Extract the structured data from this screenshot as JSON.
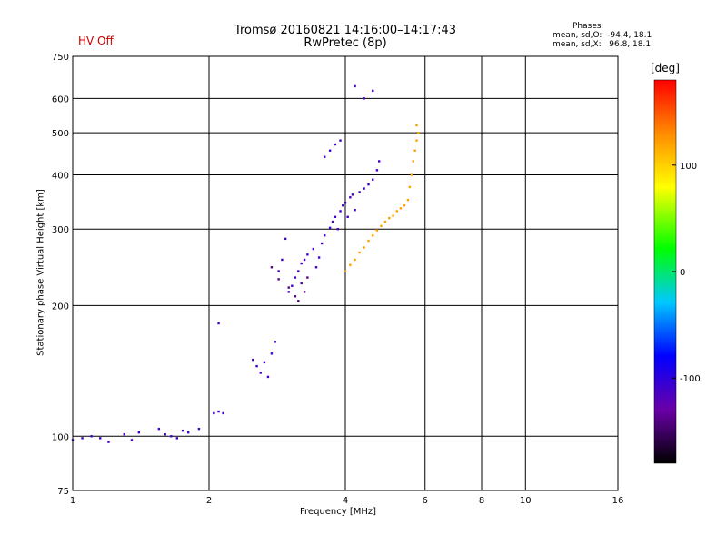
{
  "status": {
    "hv": "HV Off"
  },
  "header": {
    "title": "Tromsø 20160821 14:16:00–14:17:43",
    "subtitle": "RwPretec (8p)"
  },
  "phases": {
    "title": "Phases",
    "o": "mean, sd,O:  -94.4, 18.1",
    "x": "mean, sd,X:   96.8, 18.1"
  },
  "colorbar": {
    "label": "[deg]",
    "ticks": [
      "100",
      "0",
      "-100"
    ],
    "range": [
      -180,
      180
    ]
  },
  "chart_data": {
    "type": "scatter",
    "xlabel": "Frequency [MHz]",
    "ylabel": "Stationary phase Virtual Height [km]",
    "xscale": "log",
    "yscale": "log",
    "xlim": [
      1,
      16
    ],
    "ylim": [
      75,
      750
    ],
    "xticks": [
      1,
      2,
      4,
      6,
      8,
      10,
      16
    ],
    "xtick_labels": [
      "1",
      "2",
      "4",
      "6",
      "8",
      "10",
      "16"
    ],
    "yticks": [
      75,
      100,
      200,
      300,
      400,
      500,
      600,
      750
    ],
    "ytick_labels": [
      "75",
      "100",
      "200",
      "300",
      "400",
      "500",
      "600",
      "750"
    ],
    "grid": true,
    "series": [
      {
        "mode": "O",
        "phase_deg": -110,
        "points": [
          [
            1.0,
            98
          ],
          [
            1.05,
            99
          ],
          [
            1.1,
            100
          ],
          [
            1.15,
            99
          ],
          [
            1.2,
            97
          ],
          [
            1.3,
            101
          ],
          [
            1.35,
            98
          ],
          [
            1.4,
            102
          ],
          [
            1.55,
            104
          ],
          [
            1.6,
            101
          ],
          [
            1.65,
            100
          ],
          [
            1.7,
            99
          ],
          [
            1.75,
            103
          ],
          [
            1.8,
            102
          ],
          [
            1.9,
            104
          ],
          [
            2.05,
            113
          ],
          [
            2.1,
            114
          ],
          [
            2.15,
            113
          ],
          [
            2.1,
            182
          ],
          [
            2.5,
            150
          ],
          [
            2.55,
            145
          ],
          [
            2.6,
            140
          ],
          [
            2.65,
            148
          ],
          [
            2.7,
            137
          ],
          [
            2.75,
            155
          ],
          [
            2.8,
            165
          ],
          [
            2.85,
            240
          ],
          [
            2.9,
            255
          ],
          [
            2.95,
            285
          ],
          [
            3.0,
            215
          ],
          [
            3.05,
            222
          ],
          [
            3.1,
            232
          ],
          [
            3.15,
            240
          ],
          [
            3.2,
            250
          ],
          [
            3.25,
            255
          ],
          [
            3.3,
            262
          ],
          [
            3.4,
            270
          ],
          [
            3.45,
            245
          ],
          [
            3.5,
            258
          ],
          [
            3.55,
            278
          ],
          [
            3.6,
            290
          ],
          [
            3.7,
            302
          ],
          [
            3.75,
            312
          ],
          [
            3.8,
            320
          ],
          [
            3.85,
            300
          ],
          [
            3.9,
            330
          ],
          [
            3.95,
            340
          ],
          [
            4.0,
            345
          ],
          [
            4.05,
            320
          ],
          [
            4.1,
            355
          ],
          [
            4.15,
            360
          ],
          [
            4.2,
            332
          ],
          [
            4.3,
            365
          ],
          [
            4.4,
            372
          ],
          [
            4.5,
            380
          ],
          [
            4.6,
            390
          ],
          [
            4.7,
            410
          ],
          [
            4.75,
            430
          ],
          [
            3.6,
            440
          ],
          [
            3.7,
            455
          ],
          [
            3.8,
            470
          ],
          [
            3.9,
            480
          ],
          [
            4.2,
            640
          ],
          [
            4.4,
            600
          ],
          [
            4.6,
            625
          ]
        ]
      },
      {
        "mode": "O-low",
        "phase_deg": -140,
        "points": [
          [
            2.75,
            245
          ],
          [
            2.85,
            230
          ],
          [
            3.0,
            220
          ],
          [
            3.1,
            210
          ],
          [
            3.15,
            205
          ],
          [
            3.2,
            225
          ],
          [
            3.25,
            215
          ],
          [
            3.3,
            232
          ]
        ]
      },
      {
        "mode": "X",
        "phase_deg": 120,
        "points": [
          [
            4.0,
            240
          ],
          [
            4.1,
            248
          ],
          [
            4.2,
            255
          ],
          [
            4.3,
            265
          ],
          [
            4.4,
            272
          ],
          [
            4.5,
            282
          ],
          [
            4.6,
            290
          ],
          [
            4.7,
            298
          ],
          [
            4.8,
            305
          ],
          [
            4.9,
            312
          ],
          [
            5.0,
            318
          ],
          [
            5.1,
            322
          ],
          [
            5.2,
            330
          ],
          [
            5.3,
            335
          ],
          [
            5.4,
            340
          ],
          [
            5.5,
            350
          ],
          [
            5.55,
            375
          ],
          [
            5.6,
            400
          ],
          [
            5.65,
            430
          ],
          [
            5.7,
            455
          ],
          [
            5.75,
            480
          ],
          [
            5.8,
            500
          ],
          [
            5.75,
            520
          ]
        ]
      }
    ]
  }
}
